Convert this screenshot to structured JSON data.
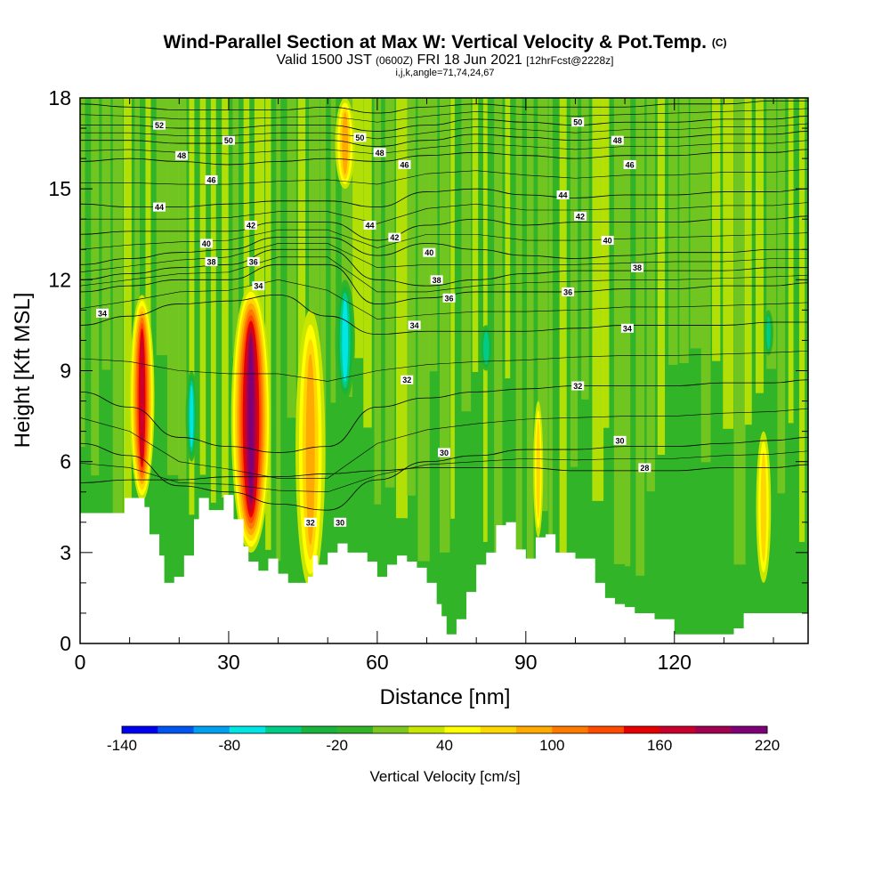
{
  "title": {
    "main": "Wind-Parallel Section at Max W: Vertical Velocity & Pot.Temp.",
    "copyright": "(C)",
    "valid_prefix": "Valid 1500 JST",
    "valid_utc": "(0600Z)",
    "valid_date": "FRI 18 Jun 2021",
    "forecast": "[12hrFcst@2228z]",
    "ijk": "i,j,k,angle=71,74,24,67"
  },
  "chart_data": {
    "type": "heatmap",
    "xlabel": "Distance [nm]",
    "ylabel": "Height [Kft MSL]",
    "xlim": [
      0,
      147
    ],
    "ylim": [
      0,
      18
    ],
    "xticks": [
      0,
      30,
      60,
      90,
      120
    ],
    "yticks": [
      0,
      3,
      6,
      9,
      12,
      15,
      18
    ],
    "colorbar": {
      "title": "Vertical Velocity [cm/s]",
      "min": -140,
      "max": 220,
      "step": 20,
      "tick_labels": [
        "-140",
        "-80",
        "-20",
        "40",
        "100",
        "160",
        "220"
      ],
      "tick_values": [
        -140,
        -80,
        -20,
        40,
        100,
        160,
        220
      ],
      "colors": [
        "#0000f0",
        "#0055f0",
        "#00a0f0",
        "#00e6e6",
        "#00cc88",
        "#19b43c",
        "#32b428",
        "#7dc81e",
        "#c8e600",
        "#ffff00",
        "#ffd700",
        "#ffaa00",
        "#ff7800",
        "#ff4b00",
        "#e60000",
        "#c8002d",
        "#a00050",
        "#7d0078"
      ]
    },
    "background_color": "#32b428",
    "features": [
      {
        "kind": "updraft",
        "x": 12.5,
        "y0": 4.7,
        "y1": 11.5,
        "half_width": 2.5,
        "peak": 170
      },
      {
        "kind": "updraft",
        "x": 34.5,
        "y0": 3.0,
        "y1": 11.8,
        "half_width": 4.0,
        "peak": 215
      },
      {
        "kind": "updraft",
        "x": 46.5,
        "y0": 1.8,
        "y1": 11.0,
        "half_width": 3.0,
        "peak": 90
      },
      {
        "kind": "updraft",
        "x": 53.5,
        "y0": 15.0,
        "y1": 18.0,
        "half_width": 2.0,
        "peak": 100
      },
      {
        "kind": "updraft",
        "x": 92.5,
        "y0": 3.5,
        "y1": 8.0,
        "half_width": 1.0,
        "peak": 80
      },
      {
        "kind": "updraft",
        "x": 138,
        "y0": 2.0,
        "y1": 7.0,
        "half_width": 1.5,
        "peak": 80
      },
      {
        "kind": "downdraft",
        "x": 53.5,
        "y0": 8.0,
        "y1": 12.0,
        "half_width": 2.0,
        "peak": -80
      },
      {
        "kind": "downdraft",
        "x": 22.5,
        "y0": 6.0,
        "y1": 9.0,
        "half_width": 1.2,
        "peak": -70
      },
      {
        "kind": "downdraft",
        "x": 139,
        "y0": 9.5,
        "y1": 11.0,
        "half_width": 1.0,
        "peak": -60
      },
      {
        "kind": "weak",
        "x": 82,
        "y0": 9.0,
        "y1": 10.5,
        "half_width": 1.5,
        "peak": -60
      }
    ],
    "terrain": {
      "x": [
        0,
        6,
        9,
        12,
        13,
        14,
        16,
        17,
        19,
        21,
        23,
        24,
        26,
        29,
        31,
        33,
        34,
        36,
        38,
        40,
        42,
        44,
        46,
        47,
        48,
        50,
        52,
        54,
        56,
        58,
        60,
        62,
        64,
        66,
        68,
        70,
        72,
        73,
        74,
        76,
        78,
        80,
        82,
        84,
        86,
        88,
        90,
        92,
        94,
        96,
        98,
        100,
        102,
        104,
        106,
        108,
        110,
        112,
        116,
        118,
        120,
        122,
        124,
        128,
        132,
        134,
        136,
        138,
        140,
        144,
        147
      ],
      "y": [
        4.3,
        4.3,
        4.8,
        4.8,
        4.5,
        3.6,
        2.9,
        2.0,
        2.2,
        2.9,
        4.1,
        4.8,
        4.4,
        4.9,
        4.1,
        3.2,
        2.7,
        2.4,
        2.8,
        2.3,
        2.0,
        2.0,
        2.2,
        2.9,
        2.6,
        3.0,
        3.3,
        3.0,
        3.0,
        2.7,
        2.2,
        2.6,
        2.9,
        2.7,
        2.5,
        2.0,
        1.3,
        0.9,
        0.3,
        0.8,
        1.7,
        2.6,
        3.0,
        3.9,
        4.0,
        3.1,
        2.8,
        3.5,
        3.6,
        3.0,
        3.0,
        2.8,
        2.8,
        2.0,
        1.5,
        1.3,
        1.2,
        1.0,
        0.8,
        0.8,
        0.3,
        0.3,
        0.3,
        0.3,
        0.5,
        1.0,
        1.0,
        1.0,
        1.0,
        1.0,
        1.0
      ]
    },
    "isentropes": [
      {
        "label": "28",
        "y": [
          5.3,
          5.4,
          5.4,
          5.5,
          5.5,
          5.6,
          5.7,
          5.8,
          5.8,
          5.8,
          5.7,
          5.7,
          5.7,
          5.8,
          5.8,
          5.9
        ]
      },
      {
        "label": "30",
        "y": [
          6.6,
          6.2,
          5.2,
          5.0,
          4.6,
          4.4,
          5.4,
          6.0,
          6.2,
          6.4,
          6.4,
          6.5,
          6.5,
          6.6,
          6.7,
          6.8
        ]
      },
      {
        "label": "32",
        "y": [
          8.3,
          7.8,
          6.8,
          6.5,
          6.3,
          6.5,
          7.8,
          8.1,
          8.3,
          8.4,
          8.5,
          8.5,
          8.5,
          8.6,
          8.6,
          8.7
        ]
      },
      {
        "label": "34",
        "y": [
          10.5,
          10.8,
          11.2,
          11.3,
          11.5,
          10.8,
          10.2,
          10.3,
          10.3,
          10.3,
          10.4,
          10.5,
          10.5,
          10.5,
          10.6,
          10.6
        ]
      },
      {
        "label": "36",
        "y": [
          11.6,
          11.8,
          12.0,
          12.0,
          12.5,
          12.5,
          11.2,
          11.4,
          11.6,
          11.6,
          11.6,
          11.7,
          11.7,
          11.8,
          11.8,
          11.9
        ]
      },
      {
        "label": "38",
        "y": [
          12.0,
          12.2,
          12.4,
          12.5,
          13.0,
          13.0,
          12.0,
          11.8,
          12.0,
          12.2,
          12.3,
          12.3,
          12.3,
          12.3,
          12.4,
          12.4
        ]
      },
      {
        "label": "40",
        "y": [
          12.5,
          12.7,
          12.9,
          13.0,
          13.4,
          13.4,
          12.8,
          13.2,
          13.0,
          12.8,
          12.7,
          12.8,
          12.9,
          12.9,
          13.0,
          13.0
        ]
      },
      {
        "label": "42",
        "y": [
          13.5,
          13.6,
          13.6,
          13.6,
          13.9,
          13.9,
          13.3,
          13.8,
          14.0,
          13.8,
          13.9,
          13.9,
          13.9,
          14.0,
          14.0,
          14.1
        ]
      },
      {
        "label": "44",
        "y": [
          14.5,
          14.4,
          14.4,
          14.5,
          14.6,
          14.6,
          14.4,
          14.9,
          15.0,
          14.8,
          14.7,
          14.8,
          14.8,
          14.9,
          14.9,
          15.0
        ]
      },
      {
        "label": "46",
        "y": [
          15.9,
          16.0,
          15.9,
          15.8,
          15.9,
          16.0,
          15.9,
          16.1,
          16.2,
          16.1,
          16.0,
          16.1,
          16.1,
          16.2,
          16.2,
          16.3
        ]
      },
      {
        "label": "48",
        "y": [
          16.6,
          16.6,
          16.5,
          16.5,
          16.6,
          16.6,
          16.4,
          16.6,
          16.8,
          16.7,
          16.6,
          16.7,
          16.7,
          16.8,
          16.8,
          16.9
        ]
      },
      {
        "label": "50",
        "y": [
          17.1,
          17.1,
          17.0,
          17.0,
          17.1,
          17.1,
          16.9,
          17.1,
          17.3,
          17.2,
          17.1,
          17.2,
          17.2,
          17.3,
          17.3,
          17.4
        ]
      },
      {
        "label": "52",
        "y": [
          17.8,
          17.7,
          17.6,
          17.6,
          17.6,
          17.7,
          17.5,
          17.7,
          17.8,
          17.7,
          17.7,
          17.7,
          17.8,
          17.8,
          17.9,
          17.9
        ]
      }
    ],
    "isentrope_x": [
      0,
      10,
      20,
      30,
      40,
      50,
      60,
      70,
      80,
      90,
      100,
      110,
      120,
      130,
      140,
      147
    ],
    "contour_labels": [
      {
        "text": "52",
        "x": 16,
        "y": 17.1
      },
      {
        "text": "50",
        "x": 30,
        "y": 16.6
      },
      {
        "text": "48",
        "x": 20.5,
        "y": 16.1
      },
      {
        "text": "46",
        "x": 26.5,
        "y": 15.3
      },
      {
        "text": "44",
        "x": 16,
        "y": 14.4
      },
      {
        "text": "42",
        "x": 34.5,
        "y": 13.8
      },
      {
        "text": "40",
        "x": 25.5,
        "y": 13.2
      },
      {
        "text": "38",
        "x": 26.5,
        "y": 12.6
      },
      {
        "text": "36",
        "x": 35,
        "y": 12.6
      },
      {
        "text": "34",
        "x": 36,
        "y": 11.8
      },
      {
        "text": "34",
        "x": 4.5,
        "y": 10.9
      },
      {
        "text": "50",
        "x": 56.5,
        "y": 16.7
      },
      {
        "text": "48",
        "x": 60.5,
        "y": 16.2
      },
      {
        "text": "46",
        "x": 65.5,
        "y": 15.8
      },
      {
        "text": "44",
        "x": 58.5,
        "y": 13.8
      },
      {
        "text": "42",
        "x": 63.5,
        "y": 13.4
      },
      {
        "text": "40",
        "x": 70.5,
        "y": 12.9
      },
      {
        "text": "38",
        "x": 72,
        "y": 12.0
      },
      {
        "text": "36",
        "x": 74.5,
        "y": 11.4
      },
      {
        "text": "34",
        "x": 67.5,
        "y": 10.5
      },
      {
        "text": "32",
        "x": 66,
        "y": 8.7
      },
      {
        "text": "30",
        "x": 73.5,
        "y": 6.3
      },
      {
        "text": "32",
        "x": 46.5,
        "y": 4.0
      },
      {
        "text": "30",
        "x": 52.5,
        "y": 4.0
      },
      {
        "text": "50",
        "x": 100.5,
        "y": 17.2
      },
      {
        "text": "48",
        "x": 108.5,
        "y": 16.6
      },
      {
        "text": "46",
        "x": 111,
        "y": 15.8
      },
      {
        "text": "44",
        "x": 97.5,
        "y": 14.8
      },
      {
        "text": "42",
        "x": 101,
        "y": 14.1
      },
      {
        "text": "40",
        "x": 106.5,
        "y": 13.3
      },
      {
        "text": "38",
        "x": 112.5,
        "y": 12.4
      },
      {
        "text": "36",
        "x": 98.5,
        "y": 11.6
      },
      {
        "text": "34",
        "x": 110.5,
        "y": 10.4
      },
      {
        "text": "32",
        "x": 100.5,
        "y": 8.5
      },
      {
        "text": "30",
        "x": 109,
        "y": 6.7
      },
      {
        "text": "28",
        "x": 114,
        "y": 5.8
      }
    ]
  }
}
